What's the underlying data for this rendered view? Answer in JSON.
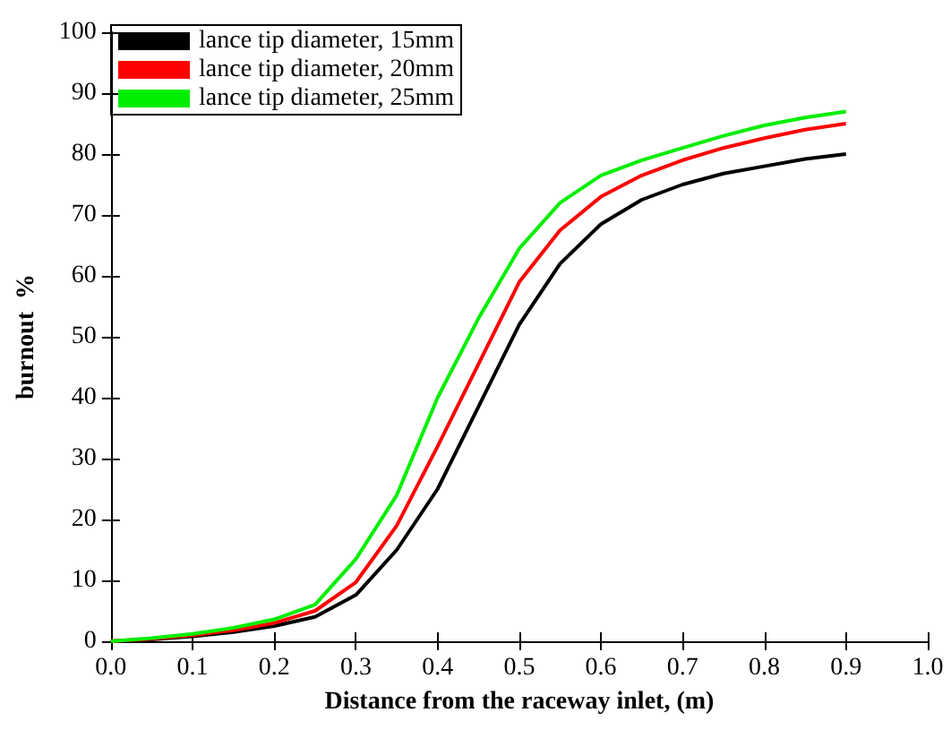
{
  "chart_data": {
    "type": "line",
    "xlabel": "Distance from the raceway inlet, (m)",
    "ylabel": "burnout  %",
    "x": [
      0,
      0.05,
      0.1,
      0.15,
      0.2,
      0.25,
      0.3,
      0.35,
      0.4,
      0.45,
      0.5,
      0.55,
      0.6,
      0.65,
      0.7,
      0.75,
      0.8,
      0.85,
      0.9
    ],
    "series": [
      {
        "name": "lance tip diameter, 15mm",
        "color": "#000000",
        "values": [
          0,
          0.3,
          0.8,
          1.5,
          2.5,
          4,
          7.6,
          15,
          25,
          38.5,
          52,
          62,
          68.5,
          72.5,
          75,
          76.8,
          78,
          79.2,
          80
        ]
      },
      {
        "name": "lance tip diameter, 20mm",
        "color": "#ff0000",
        "values": [
          0,
          0.4,
          1,
          1.8,
          3,
          5,
          9.7,
          19,
          32,
          45.5,
          59,
          67.5,
          73,
          76.5,
          79,
          81,
          82.6,
          84,
          85
        ]
      },
      {
        "name": "lance tip diameter, 25mm",
        "color": "#00ee00",
        "values": [
          0,
          0.5,
          1.2,
          2.2,
          3.6,
          6,
          13.5,
          24,
          40,
          53,
          64.5,
          72,
          76.5,
          79,
          81,
          83,
          84.7,
          86,
          87
        ]
      }
    ],
    "xlim": [
      0,
      1
    ],
    "xticks": [
      {
        "value": 0,
        "label": "0.0"
      },
      0.1,
      0.2,
      0.3,
      0.4,
      0.5,
      0.6,
      0.7,
      0.8,
      0.9,
      {
        "value": 1,
        "label": "1.0"
      }
    ],
    "ylim": [
      0,
      100
    ],
    "yticks": [
      0,
      10,
      20,
      30,
      40,
      50,
      60,
      70,
      80,
      90,
      100
    ],
    "grid": false,
    "legend": "top left",
    "marker": "none",
    "line_style": "solid"
  }
}
